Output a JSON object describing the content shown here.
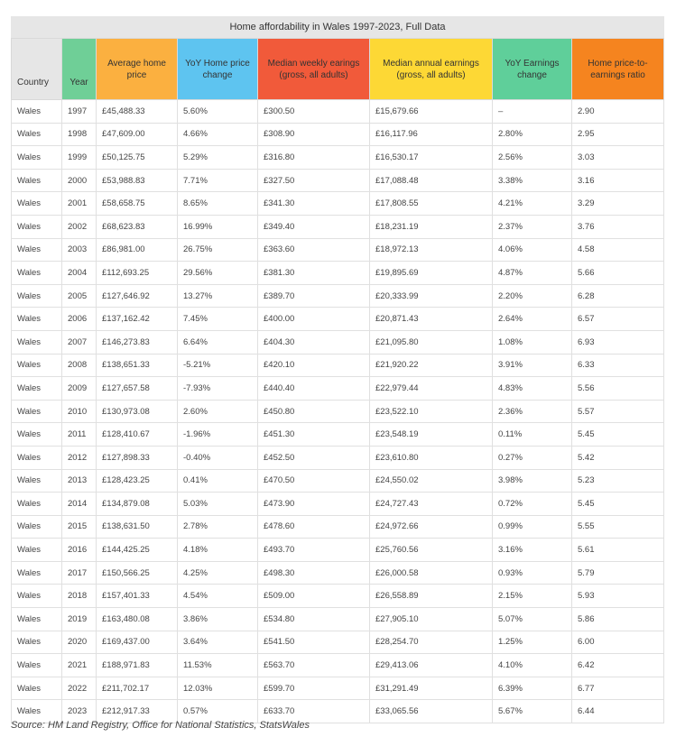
{
  "table": {
    "caption": "Home affordability in Wales 1997-2023, Full Data",
    "headers": {
      "country": "Country",
      "year": "Year",
      "avg_price": "Average home price",
      "yoy_price": "YoY Home price change",
      "weekly": "Median weekly earings (gross, all adults)",
      "annual": "Median annual earnings (gross, all adults)",
      "yoy_earn": "YoY Earnings change",
      "ratio": "Home price-to-earnings ratio"
    },
    "rows": [
      [
        "Wales",
        "1997",
        "£45,488.33",
        "5.60%",
        "£300.50",
        "£15,679.66",
        "–",
        "2.90"
      ],
      [
        "Wales",
        "1998",
        "£47,609.00",
        "4.66%",
        "£308.90",
        "£16,117.96",
        "2.80%",
        "2.95"
      ],
      [
        "Wales",
        "1999",
        "£50,125.75",
        "5.29%",
        "£316.80",
        "£16,530.17",
        "2.56%",
        "3.03"
      ],
      [
        "Wales",
        "2000",
        "£53,988.83",
        "7.71%",
        "£327.50",
        "£17,088.48",
        "3.38%",
        "3.16"
      ],
      [
        "Wales",
        "2001",
        "£58,658.75",
        "8.65%",
        "£341.30",
        "£17,808.55",
        "4.21%",
        "3.29"
      ],
      [
        "Wales",
        "2002",
        "£68,623.83",
        "16.99%",
        "£349.40",
        "£18,231.19",
        "2.37%",
        "3.76"
      ],
      [
        "Wales",
        "2003",
        "£86,981.00",
        "26.75%",
        "£363.60",
        "£18,972.13",
        "4.06%",
        "4.58"
      ],
      [
        "Wales",
        "2004",
        "£112,693.25",
        "29.56%",
        "£381.30",
        "£19,895.69",
        "4.87%",
        "5.66"
      ],
      [
        "Wales",
        "2005",
        "£127,646.92",
        "13.27%",
        "£389.70",
        "£20,333.99",
        "2.20%",
        "6.28"
      ],
      [
        "Wales",
        "2006",
        "£137,162.42",
        "7.45%",
        "£400.00",
        "£20,871.43",
        "2.64%",
        "6.57"
      ],
      [
        "Wales",
        "2007",
        "£146,273.83",
        "6.64%",
        "£404.30",
        "£21,095.80",
        "1.08%",
        "6.93"
      ],
      [
        "Wales",
        "2008",
        "£138,651.33",
        "-5.21%",
        "£420.10",
        "£21,920.22",
        "3.91%",
        "6.33"
      ],
      [
        "Wales",
        "2009",
        "£127,657.58",
        "-7.93%",
        "£440.40",
        "£22,979.44",
        "4.83%",
        "5.56"
      ],
      [
        "Wales",
        "2010",
        "£130,973.08",
        "2.60%",
        "£450.80",
        "£23,522.10",
        "2.36%",
        "5.57"
      ],
      [
        "Wales",
        "2011",
        "£128,410.67",
        "-1.96%",
        "£451.30",
        "£23,548.19",
        "0.11%",
        "5.45"
      ],
      [
        "Wales",
        "2012",
        "£127,898.33",
        "-0.40%",
        "£452.50",
        "£23,610.80",
        "0.27%",
        "5.42"
      ],
      [
        "Wales",
        "2013",
        "£128,423.25",
        "0.41%",
        "£470.50",
        "£24,550.02",
        "3.98%",
        "5.23"
      ],
      [
        "Wales",
        "2014",
        "£134,879.08",
        "5.03%",
        "£473.90",
        "£24,727.43",
        "0.72%",
        "5.45"
      ],
      [
        "Wales",
        "2015",
        "£138,631.50",
        "2.78%",
        "£478.60",
        "£24,972.66",
        "0.99%",
        "5.55"
      ],
      [
        "Wales",
        "2016",
        "£144,425.25",
        "4.18%",
        "£493.70",
        "£25,760.56",
        "3.16%",
        "5.61"
      ],
      [
        "Wales",
        "2017",
        "£150,566.25",
        "4.25%",
        "£498.30",
        "£26,000.58",
        "0.93%",
        "5.79"
      ],
      [
        "Wales",
        "2018",
        "£157,401.33",
        "4.54%",
        "£509.00",
        "£26,558.89",
        "2.15%",
        "5.93"
      ],
      [
        "Wales",
        "2019",
        "£163,480.08",
        "3.86%",
        "£534.80",
        "£27,905.10",
        "5.07%",
        "5.86"
      ],
      [
        "Wales",
        "2020",
        "£169,437.00",
        "3.64%",
        "£541.50",
        "£28,254.70",
        "1.25%",
        "6.00"
      ],
      [
        "Wales",
        "2021",
        "£188,971.83",
        "11.53%",
        "£563.70",
        "£29,413.06",
        "4.10%",
        "6.42"
      ],
      [
        "Wales",
        "2022",
        "£211,702.17",
        "12.03%",
        "£599.70",
        "£31,291.49",
        "6.39%",
        "6.77"
      ],
      [
        "Wales",
        "2023",
        "£212,917.33",
        "0.57%",
        "£633.70",
        "£33,065.56",
        "5.67%",
        "6.44"
      ]
    ]
  },
  "source": "Source: HM Land Registry, Office for National Statistics, StatsWales"
}
